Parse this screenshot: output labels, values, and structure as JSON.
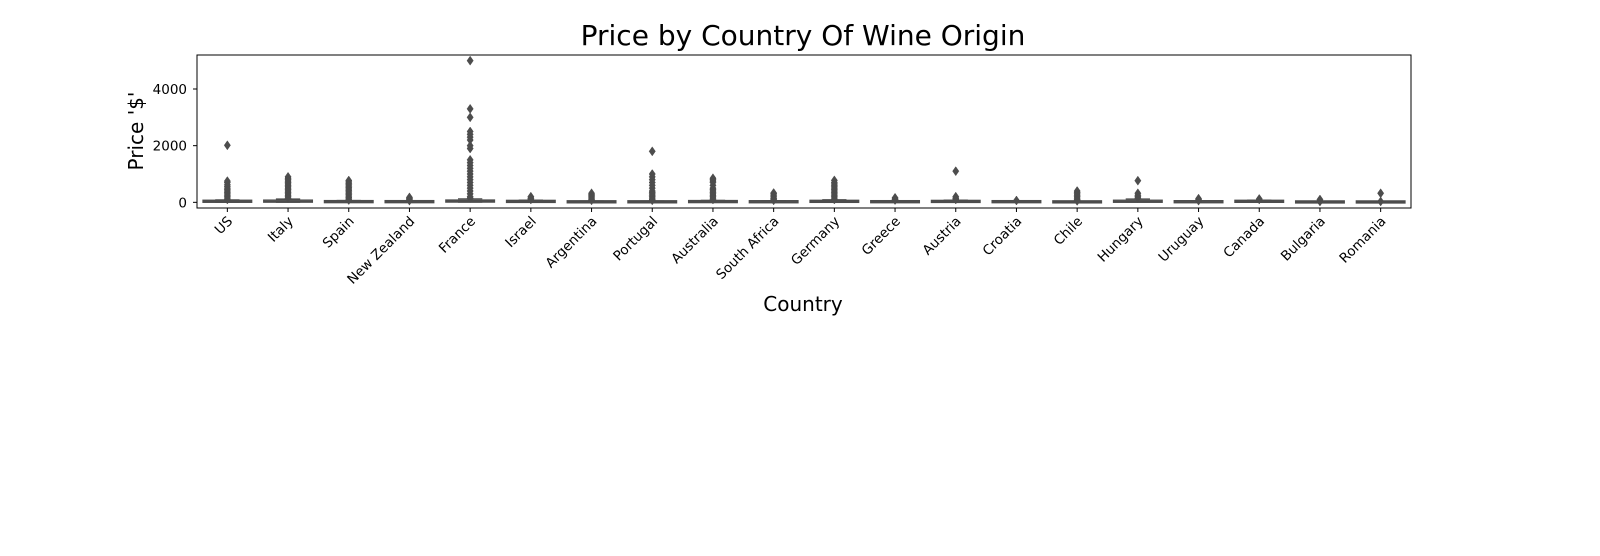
{
  "chart_data": {
    "type": "box",
    "title": "Price by Country Of Wine Origin",
    "xlabel": "Country",
    "ylabel": "Price '$'",
    "ylim": [
      -200,
      5200
    ],
    "yticks": [
      0,
      2000,
      4000
    ],
    "grid": false,
    "box_color": "#4d4d4d",
    "categories": [
      "US",
      "Italy",
      "Spain",
      "New Zealand",
      "France",
      "Israel",
      "Argentina",
      "Portugal",
      "Australia",
      "South Africa",
      "Germany",
      "Greece",
      "Austria",
      "Croatia",
      "Chile",
      "Hungary",
      "Uruguay",
      "Canada",
      "Bulgaria",
      "Romania"
    ],
    "series": [
      {
        "category": "US",
        "q1": 25,
        "median": 36,
        "q3": 50,
        "whisker_low": 4,
        "whisker_high": 87,
        "outlier_max": 2013,
        "outliers": [
          2013,
          750,
          700,
          620,
          560,
          500,
          450,
          400,
          350,
          300,
          250,
          200,
          150,
          100
        ]
      },
      {
        "category": "Italy",
        "q1": 22,
        "median": 37,
        "q3": 62,
        "whisker_low": 4,
        "whisker_high": 120,
        "outlier_max": 900,
        "outliers": [
          900,
          850,
          800,
          750,
          700,
          650,
          600,
          550,
          500,
          450,
          400,
          350,
          300,
          250,
          200,
          150
        ]
      },
      {
        "category": "Spain",
        "q1": 15,
        "median": 21,
        "q3": 35,
        "whisker_low": 4,
        "whisker_high": 65,
        "outlier_max": 770,
        "outliers": [
          770,
          720,
          670,
          620,
          570,
          520,
          470,
          420,
          370,
          320,
          270,
          220,
          170,
          120,
          80
        ]
      },
      {
        "category": "New Zealand",
        "q1": 17,
        "median": 23,
        "q3": 31,
        "whisker_low": 5,
        "whisker_high": 52,
        "outlier_max": 175,
        "outliers": [
          175,
          150,
          125,
          100,
          80,
          60
        ]
      },
      {
        "category": "France",
        "q1": 25,
        "median": 38,
        "q3": 65,
        "whisker_low": 5,
        "whisker_high": 125,
        "outlier_max": 5000,
        "outliers": [
          5000,
          3300,
          3000,
          2500,
          2400,
          2300,
          2200,
          2000,
          1900,
          1500,
          1400,
          1300,
          1200,
          1100,
          1000,
          900,
          800,
          700,
          600,
          500,
          400,
          300,
          200,
          150
        ]
      },
      {
        "category": "Israel",
        "q1": 21,
        "median": 30,
        "q3": 45,
        "whisker_low": 8,
        "whisker_high": 80,
        "outlier_max": 200,
        "outliers": [
          200,
          150,
          120,
          100
        ]
      },
      {
        "category": "Argentina",
        "q1": 12,
        "median": 17,
        "q3": 26,
        "whisker_low": 4,
        "whisker_high": 50,
        "outlier_max": 320,
        "outliers": [
          320,
          280,
          240,
          200,
          160,
          120,
          90,
          70
        ]
      },
      {
        "category": "Portugal",
        "q1": 12,
        "median": 16,
        "q3": 26,
        "whisker_low": 5,
        "whisker_high": 48,
        "outlier_max": 1800,
        "outliers": [
          1800,
          1000,
          900,
          800,
          700,
          600,
          500,
          400,
          350,
          300,
          250,
          200,
          150,
          100,
          70
        ]
      },
      {
        "category": "Australia",
        "q1": 15,
        "median": 21,
        "q3": 38,
        "whisker_low": 5,
        "whisker_high": 72,
        "outlier_max": 850,
        "outliers": [
          850,
          800,
          750,
          700,
          600,
          500,
          450,
          400,
          350,
          300,
          250,
          200,
          150,
          100
        ]
      },
      {
        "category": "South Africa",
        "q1": 13,
        "median": 19,
        "q3": 30,
        "whisker_low": 5,
        "whisker_high": 55,
        "outlier_max": 330,
        "outliers": [
          330,
          300,
          250,
          200,
          150,
          120,
          90,
          70
        ]
      },
      {
        "category": "Germany",
        "q1": 20,
        "median": 30,
        "q3": 50,
        "whisker_low": 5,
        "whisker_high": 90,
        "outlier_max": 775,
        "outliers": [
          775,
          700,
          650,
          600,
          550,
          500,
          450,
          400,
          350,
          300,
          250,
          200,
          150,
          100
        ]
      },
      {
        "category": "Greece",
        "q1": 16,
        "median": 21,
        "q3": 30,
        "whisker_low": 8,
        "whisker_high": 50,
        "outlier_max": 160,
        "outliers": [
          160,
          120,
          100,
          80
        ]
      },
      {
        "category": "Austria",
        "q1": 20,
        "median": 28,
        "q3": 45,
        "whisker_low": 7,
        "whisker_high": 80,
        "outlier_max": 1100,
        "outliers": [
          1100,
          200,
          150,
          120,
          100
        ]
      },
      {
        "category": "Croatia",
        "q1": 16,
        "median": 21,
        "q3": 31,
        "whisker_low": 12,
        "whisker_high": 50,
        "outlier_max": 65,
        "outliers": [
          65
        ]
      },
      {
        "category": "Chile",
        "q1": 12,
        "median": 15,
        "q3": 22,
        "whisker_low": 5,
        "whisker_high": 40,
        "outlier_max": 400,
        "outliers": [
          400,
          350,
          300,
          250,
          200,
          150,
          100,
          70,
          50
        ]
      },
      {
        "category": "Hungary",
        "q1": 16,
        "median": 25,
        "q3": 60,
        "whisker_low": 10,
        "whisker_high": 120,
        "outlier_max": 764,
        "outliers": [
          764,
          320,
          250,
          200,
          150
        ]
      },
      {
        "category": "Uruguay",
        "q1": 15,
        "median": 20,
        "q3": 29,
        "whisker_low": 10,
        "whisker_high": 45,
        "outlier_max": 130,
        "outliers": [
          130,
          100,
          80,
          60
        ]
      },
      {
        "category": "Canada",
        "q1": 25,
        "median": 35,
        "q3": 47,
        "whisker_low": 12,
        "whisker_high": 80,
        "outlier_max": 120,
        "outliers": [
          120,
          100
        ]
      },
      {
        "category": "Bulgaria",
        "q1": 10,
        "median": 14,
        "q3": 18,
        "whisker_low": 8,
        "whisker_high": 25,
        "outlier_max": 100,
        "outliers": [
          100,
          60,
          40,
          30
        ]
      },
      {
        "category": "Romania",
        "q1": 10,
        "median": 15,
        "q3": 17,
        "whisker_low": 4,
        "whisker_high": 25,
        "outlier_max": 320,
        "outliers": [
          320,
          30
        ]
      }
    ]
  }
}
